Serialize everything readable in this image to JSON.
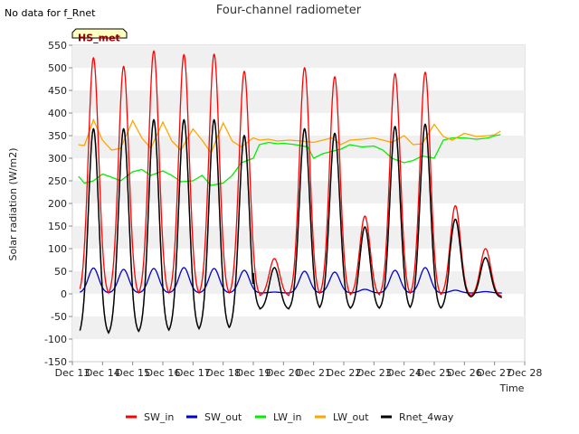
{
  "chart_data": {
    "type": "line",
    "title": "Four-channel radiometer",
    "no_data_note": "No data for f_Rnet",
    "site_badge": "HS_met",
    "xlabel": "Time",
    "ylabel": "Solar radiation (W/m2)",
    "xlim": [
      13,
      28
    ],
    "ylim": [
      -150,
      550
    ],
    "x_ticks": [
      13,
      14,
      15,
      16,
      17,
      18,
      19,
      20,
      21,
      22,
      23,
      24,
      25,
      26,
      27,
      28
    ],
    "x_tick_labels": [
      "Dec 13",
      "Dec 14",
      "Dec 15",
      "Dec 16",
      "Dec 17",
      "Dec 18",
      "Dec 19",
      "Dec 20",
      "Dec 21",
      "Dec 22",
      "Dec 23",
      "Dec 24",
      "Dec 25",
      "Dec 26",
      "Dec 27",
      "Dec 28"
    ],
    "y_ticks": [
      -150,
      -100,
      -50,
      0,
      50,
      100,
      150,
      200,
      250,
      300,
      350,
      400,
      450,
      500,
      550
    ],
    "legend_position": "bottom-center",
    "day_centers": [
      13.7,
      14.7,
      15.7,
      16.7,
      17.7,
      18.7,
      19.7,
      20.7,
      21.7,
      22.7,
      23.7,
      24.7,
      25.7,
      26.7
    ],
    "series": [
      {
        "name": "SW_in",
        "color": "#ff0000",
        "daily_peak": [
          522,
          503,
          537,
          529,
          530,
          492,
          78,
          500,
          480,
          172,
          487,
          490,
          195,
          100
        ],
        "night_value": -5
      },
      {
        "name": "SW_out",
        "color": "#0000cc",
        "daily_peak": [
          57,
          54,
          56,
          58,
          56,
          52,
          4,
          50,
          48,
          10,
          52,
          58,
          8,
          5
        ],
        "night_value": 2
      },
      {
        "name": "LW_in",
        "color": "#00ee00",
        "x": [
          13.2,
          13.4,
          13.7,
          14.0,
          14.3,
          14.6,
          15.0,
          15.3,
          15.6,
          16.0,
          16.3,
          16.6,
          17.0,
          17.3,
          17.6,
          18.0,
          18.3,
          18.6,
          19.0,
          19.2,
          19.5,
          19.8,
          20.0,
          20.4,
          20.8,
          21.0,
          21.3,
          21.6,
          21.9,
          22.2,
          22.6,
          23.0,
          23.3,
          23.6,
          24.0,
          24.3,
          24.6,
          25.0,
          25.3,
          25.6,
          26.0,
          26.4,
          26.8,
          27.0,
          27.2
        ],
        "y": [
          260,
          245,
          250,
          265,
          258,
          250,
          270,
          275,
          262,
          272,
          262,
          248,
          250,
          262,
          240,
          245,
          262,
          290,
          300,
          330,
          335,
          332,
          333,
          330,
          325,
          300,
          310,
          315,
          320,
          330,
          325,
          327,
          318,
          300,
          290,
          295,
          305,
          300,
          340,
          345,
          345,
          342,
          345,
          350,
          352
        ]
      },
      {
        "name": "LW_out",
        "color": "#ffa500",
        "x": [
          13.2,
          13.4,
          13.7,
          14.0,
          14.3,
          14.6,
          15.0,
          15.3,
          15.6,
          16.0,
          16.3,
          16.6,
          17.0,
          17.3,
          17.6,
          18.0,
          18.3,
          18.6,
          19.0,
          19.2,
          19.5,
          19.8,
          20.2,
          20.6,
          21.0,
          21.3,
          21.6,
          21.9,
          22.2,
          22.6,
          23.0,
          23.3,
          23.6,
          24.0,
          24.3,
          24.6,
          25.0,
          25.3,
          25.6,
          26.0,
          26.4,
          26.8,
          27.0,
          27.2
        ],
        "y": [
          330,
          328,
          385,
          340,
          318,
          322,
          383,
          345,
          322,
          380,
          338,
          318,
          365,
          340,
          312,
          378,
          338,
          325,
          345,
          340,
          342,
          338,
          340,
          338,
          335,
          340,
          345,
          330,
          340,
          342,
          345,
          340,
          335,
          350,
          330,
          332,
          375,
          348,
          340,
          355,
          348,
          350,
          352,
          360
        ]
      },
      {
        "name": "Rnet_4way",
        "color": "#000000",
        "daily_peak": [
          365,
          365,
          385,
          385,
          385,
          350,
          58,
          365,
          355,
          148,
          370,
          375,
          165,
          80
        ],
        "night_value": -95
      }
    ]
  }
}
